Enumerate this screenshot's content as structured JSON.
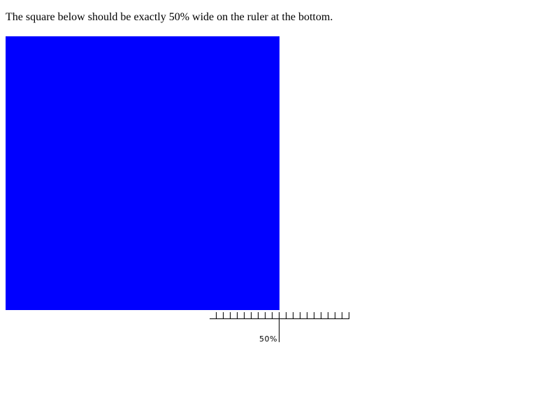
{
  "instruction_text": "The square below should be exactly 50% wide on the ruler at the bottom.",
  "square": {
    "color": "#0000ff",
    "width_fraction_of_ruler": 0.5
  },
  "ruler": {
    "label": "50%",
    "marked_percent": 50,
    "tick_count": 20
  }
}
